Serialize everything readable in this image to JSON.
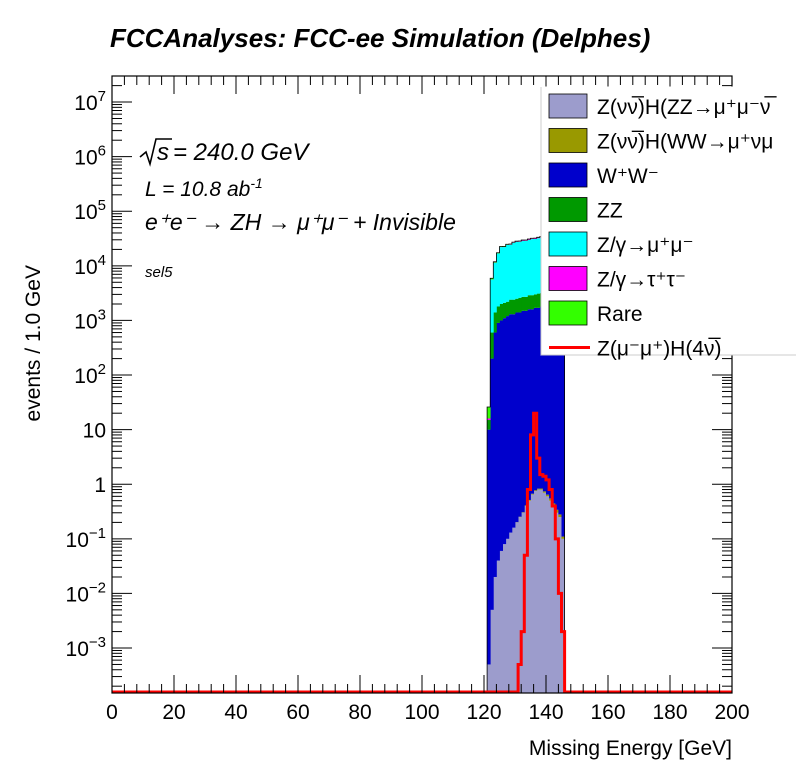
{
  "chart_data": {
    "type": "stacked-histogram",
    "title": "FCCAnalyses: FCC-ee Simulation (Delphes)",
    "xlabel": "Missing Energy [GeV]",
    "ylabel": "events / 1.0 GeV",
    "xlim": [
      0,
      200
    ],
    "ylim": [
      0.00015,
      30000000
    ],
    "yscale": "log",
    "x_ticks": [
      "0",
      "20",
      "40",
      "60",
      "80",
      "100",
      "120",
      "140",
      "160",
      "180",
      "200"
    ],
    "annotations": {
      "sqrt_s": "= 240.0 GeV",
      "lumi": "L = 10.8 ab",
      "lumi_exp": "-1",
      "process": "e⁺e⁻ → ZH → μ⁺μ⁻ + Invisible",
      "selection": "sel5"
    },
    "bin_width": 1.0,
    "bin_edges": [
      121,
      122,
      123,
      124,
      125,
      126,
      127,
      128,
      129,
      130,
      131,
      132,
      133,
      134,
      135,
      136,
      137,
      138,
      139,
      140,
      141,
      142,
      143,
      144,
      145,
      146
    ],
    "background_stack": [
      {
        "name": "Z(νν̅)H(ZZ→μ⁺μ⁻νν̅)",
        "color": "#9c9ccc",
        "values": [
          0.0005,
          0.005,
          0.02,
          0.04,
          0.06,
          0.08,
          0.1,
          0.13,
          0.16,
          0.2,
          0.25,
          0.3,
          0.4,
          0.5,
          0.65,
          0.75,
          0.8,
          0.8,
          0.7,
          0.6,
          0.5,
          0.4,
          0.3,
          0.25,
          0.1
        ]
      },
      {
        "name": "Z(νν̅)H(WW→μ⁺νμ⁻ν̅)",
        "color": "#999900",
        "values": [
          0,
          0,
          0,
          0,
          0,
          0,
          0,
          0,
          0,
          0.002,
          0.004,
          0.006,
          0.01,
          0.015,
          0.02,
          0.025,
          0.03,
          0.035,
          0.04,
          0.045,
          0.05,
          0.045,
          0.04,
          0.03,
          0.01
        ]
      },
      {
        "name": "W⁺W⁻",
        "color": "#0000cc",
        "values": [
          10,
          200,
          600,
          900,
          1000,
          1100,
          1200,
          1300,
          1300,
          1400,
          1400,
          1500,
          1500,
          1600,
          1600,
          1700,
          1700,
          1800,
          1800,
          1900,
          1900,
          2000,
          2000,
          2100,
          2000
        ]
      },
      {
        "name": "ZZ",
        "color": "#009900",
        "values": [
          5,
          400,
          800,
          900,
          1000,
          1000,
          1000,
          1100,
          1100,
          1100,
          1200,
          1200,
          1200,
          1300,
          1300,
          1300,
          1400,
          1400,
          1400,
          1500,
          1500,
          1500,
          1600,
          1600,
          1000
        ]
      },
      {
        "name": "Z/γ→μ⁺μ⁻",
        "color": "#00ffff",
        "values": [
          0,
          5000,
          10000,
          15000,
          20000,
          20000,
          22000,
          22000,
          24000,
          25000,
          25000,
          26000,
          26000,
          27000,
          28000,
          28000,
          29000,
          30000,
          30000,
          32000,
          32000,
          34000,
          35000,
          36000,
          38000
        ]
      },
      {
        "name": "Z/γ→τ⁺τ⁻",
        "color": "#ff00ff",
        "values": [
          1,
          20,
          40,
          60,
          80,
          100,
          150,
          200,
          250,
          300,
          400,
          450,
          500,
          550,
          600,
          650,
          700,
          750,
          800,
          850,
          900,
          950,
          1000,
          1000,
          800
        ]
      },
      {
        "name": "Rare",
        "color": "#33ff00",
        "values": [
          10,
          300,
          400,
          500,
          500,
          500,
          500,
          500,
          500,
          500,
          500,
          500,
          500,
          500,
          500,
          500,
          500,
          500,
          500,
          500,
          500,
          500,
          500,
          500,
          400
        ]
      }
    ],
    "signal": {
      "name": "Z(μ⁻μ⁺)H(4ν)",
      "color": "#ff0000",
      "bin_edges": [
        121,
        122,
        123,
        124,
        125,
        126,
        127,
        128,
        129,
        130,
        131,
        132,
        133,
        134,
        135,
        136,
        137,
        138,
        139,
        140,
        141,
        142,
        143,
        144,
        145,
        146
      ],
      "values": [
        0,
        0,
        0,
        0,
        0,
        0,
        0,
        0,
        0,
        0,
        0.0005,
        0.002,
        0.05,
        0.8,
        8,
        20,
        3,
        1.5,
        1.4,
        1.2,
        0.8,
        0.4,
        0.1,
        0.01,
        0.002
      ]
    },
    "legend": {
      "placement": "top-right",
      "entries": [
        {
          "label": "Z(νν̅)H(ZZ→μ⁺μ⁻ν̅",
          "color": "#9c9ccc",
          "kind": "box"
        },
        {
          "label": "Z(νν̅)H(WW→μ⁺νμ",
          "color": "#999900",
          "kind": "box"
        },
        {
          "label": "W⁺W⁻",
          "color": "#0000cc",
          "kind": "box"
        },
        {
          "label": "ZZ",
          "color": "#009900",
          "kind": "box"
        },
        {
          "label": "Z/γ→μ⁺μ⁻",
          "color": "#00ffff",
          "kind": "box"
        },
        {
          "label": "Z/γ→τ⁺τ⁻",
          "color": "#ff00ff",
          "kind": "box"
        },
        {
          "label": "Rare",
          "color": "#33ff00",
          "kind": "box"
        },
        {
          "label": "Z(μ⁻μ⁺)H(4ν̅)",
          "color": "#ff0000",
          "kind": "line"
        }
      ]
    }
  }
}
